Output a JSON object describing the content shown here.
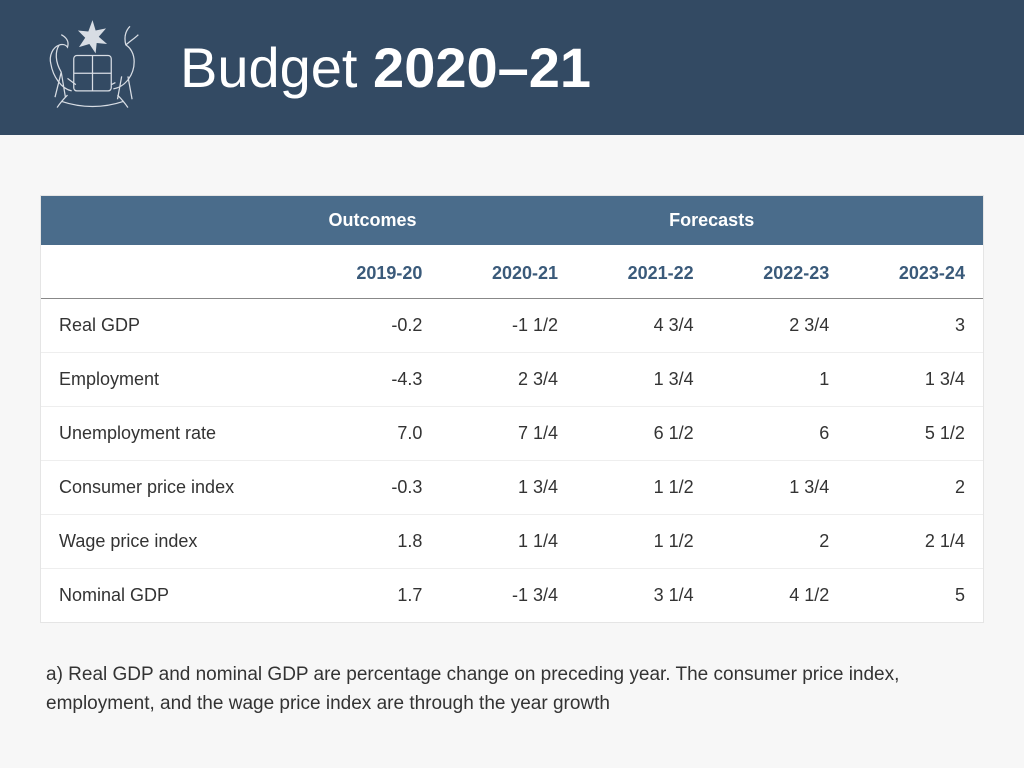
{
  "header": {
    "title_light": "Budget ",
    "title_bold": "2020–21",
    "bg_color": "#334a63",
    "text_color": "#ffffff"
  },
  "table": {
    "header_bg": "#4a6c8b",
    "header_text_color": "#ffffff",
    "year_header_color": "#3a5a7a",
    "group_headers": {
      "outcomes": "Outcomes",
      "forecasts": "Forecasts"
    },
    "columns": [
      "2019-20",
      "2020-21",
      "2021-22",
      "2022-23",
      "2023-24"
    ],
    "rows": [
      {
        "label": "Real GDP",
        "values": [
          "-0.2",
          "-1 1/2",
          "4 3/4",
          "2 3/4",
          "3"
        ]
      },
      {
        "label": "Employment",
        "values": [
          "-4.3",
          "2 3/4",
          "1 3/4",
          "1",
          "1 3/4"
        ]
      },
      {
        "label": "Unemployment rate",
        "values": [
          "7.0",
          "7 1/4",
          "6 1/2",
          "6",
          "5 1/2"
        ]
      },
      {
        "label": "Consumer price index",
        "values": [
          "-0.3",
          "1 3/4",
          "1 1/2",
          "1 3/4",
          "2"
        ]
      },
      {
        "label": "Wage price index",
        "values": [
          "1.8",
          "1 1/4",
          "1 1/2",
          "2",
          "2 1/4"
        ]
      },
      {
        "label": "Nominal GDP",
        "values": [
          "1.7",
          "-1 3/4",
          "3 1/4",
          "4 1/2",
          "5"
        ]
      }
    ]
  },
  "footnote": "a) Real GDP and nominal GDP are percentage change on preceding year. The consumer price index, employment, and the wage price index are through the year growth"
}
